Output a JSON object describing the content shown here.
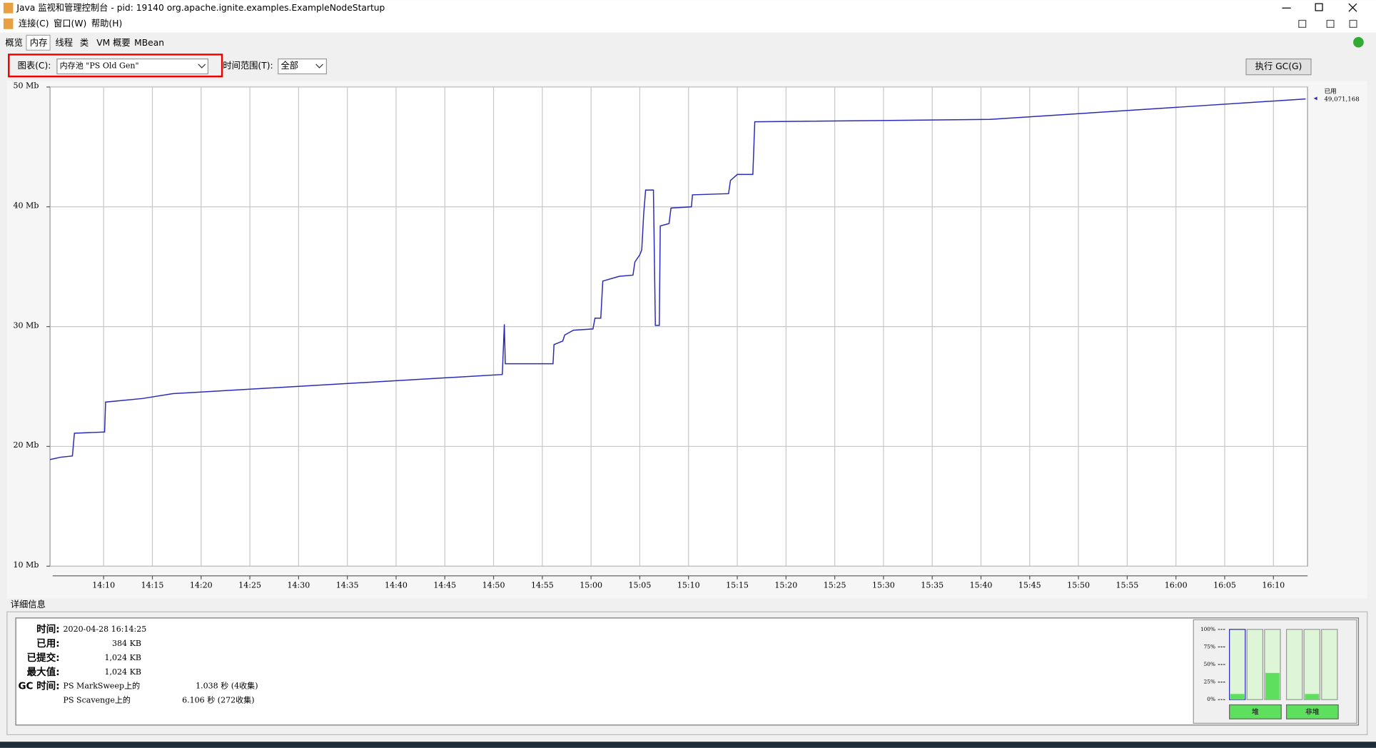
{
  "window": {
    "title": "Java 监视和管理控制台 - pid: 19140 org.apache.ignite.examples.ExampleNodeStartup"
  },
  "menu": [
    "连接(C)",
    "窗口(W)",
    "帮助(H)"
  ],
  "tabs": [
    "概览",
    "内存",
    "线程",
    "类",
    "VM 概要",
    "MBean"
  ],
  "controls": {
    "chart_label": "图表(C):",
    "chart_value": "内存池 \"PS Old Gen\"",
    "range_label": "时间范围(T):",
    "range_value": "全部",
    "gc_button": "执行 GC(G)"
  },
  "chart_data": {
    "type": "line",
    "xlim": [
      844.5,
      973.5
    ],
    "ylim": [
      10,
      50
    ],
    "xticks": [
      {
        "value": 850,
        "label": "14:10"
      },
      {
        "value": 855,
        "label": "14:15"
      },
      {
        "value": 860,
        "label": "14:20"
      },
      {
        "value": 865,
        "label": "14:25"
      },
      {
        "value": 870,
        "label": "14:30"
      },
      {
        "value": 875,
        "label": "14:35"
      },
      {
        "value": 880,
        "label": "14:40"
      },
      {
        "value": 885,
        "label": "14:45"
      },
      {
        "value": 890,
        "label": "14:50"
      },
      {
        "value": 895,
        "label": "14:55"
      },
      {
        "value": 900,
        "label": "15:00"
      },
      {
        "value": 905,
        "label": "15:05"
      },
      {
        "value": 910,
        "label": "15:10"
      },
      {
        "value": 915,
        "label": "15:15"
      },
      {
        "value": 920,
        "label": "15:20"
      },
      {
        "value": 925,
        "label": "15:25"
      },
      {
        "value": 930,
        "label": "15:30"
      },
      {
        "value": 935,
        "label": "15:35"
      },
      {
        "value": 940,
        "label": "15:40"
      },
      {
        "value": 945,
        "label": "15:45"
      },
      {
        "value": 950,
        "label": "15:50"
      },
      {
        "value": 955,
        "label": "15:55"
      },
      {
        "value": 960,
        "label": "16:00"
      },
      {
        "value": 965,
        "label": "16:05"
      },
      {
        "value": 970,
        "label": "16:10"
      }
    ],
    "yticks": [
      {
        "value": 10,
        "label": "10 Mb"
      },
      {
        "value": 20,
        "label": "20 Mb"
      },
      {
        "value": 30,
        "label": "30 Mb"
      },
      {
        "value": 40,
        "label": "40 Mb"
      },
      {
        "value": 50,
        "label": "50 Mb"
      }
    ],
    "grid": true,
    "series": [
      {
        "name": "已用",
        "color": "#2a2ab8",
        "x": [
          844.5,
          845.6,
          846.8,
          847.0,
          850.1,
          850.2,
          854.0,
          857.1,
          890.9,
          891.1,
          891.2,
          896.1,
          896.2,
          897.1,
          897.3,
          898.2,
          900.2,
          900.4,
          901.0,
          901.2,
          902.9,
          904.3,
          904.5,
          905.0,
          905.2,
          905.4,
          905.6,
          906.4,
          906.6,
          907.0,
          907.1,
          908.0,
          908.2,
          910.3,
          910.4,
          914.1,
          914.3,
          915.0,
          916.6,
          916.8,
          940.9,
          973.3
        ],
        "values": [
          18.9,
          19.1,
          19.2,
          21.1,
          21.2,
          23.7,
          24.0,
          24.4,
          26.0,
          30.2,
          26.9,
          26.9,
          28.5,
          28.8,
          29.3,
          29.7,
          29.8,
          30.7,
          30.7,
          33.8,
          34.2,
          34.3,
          35.4,
          36.0,
          36.4,
          39.4,
          41.4,
          41.4,
          30.1,
          30.1,
          38.4,
          38.6,
          39.9,
          40.0,
          41.0,
          41.1,
          42.2,
          42.7,
          42.7,
          47.1,
          47.3,
          49.0
        ]
      }
    ],
    "end_label": "49,071,168"
  },
  "details": {
    "title": "详细信息",
    "rows": [
      [
        "时间:",
        "2020-04-28 16:14:25"
      ],
      [
        "已用:",
        "384 KB"
      ],
      [
        "已提交:",
        "1,024 KB"
      ],
      [
        "最大值:",
        "1,024 KB"
      ]
    ],
    "gc_label": "GC 时间:",
    "gc_rows": [
      [
        "PS MarkSweep上的",
        "1.038 秒 (4收集)"
      ],
      [
        "PS Scavenge上的",
        "6.106 秒 (272收集)"
      ]
    ]
  },
  "meters": {
    "ylim": [
      0,
      100
    ],
    "ticks": [
      {
        "value": 100,
        "label": "100%"
      },
      {
        "value": 75,
        "label": "75%"
      },
      {
        "value": 50,
        "label": "50%"
      },
      {
        "value": 25,
        "label": "25%"
      },
      {
        "value": 0,
        "label": "0%"
      }
    ],
    "values": [
      8,
      0,
      38,
      0,
      8,
      0
    ],
    "groups": [
      "堆",
      "非堆"
    ]
  }
}
